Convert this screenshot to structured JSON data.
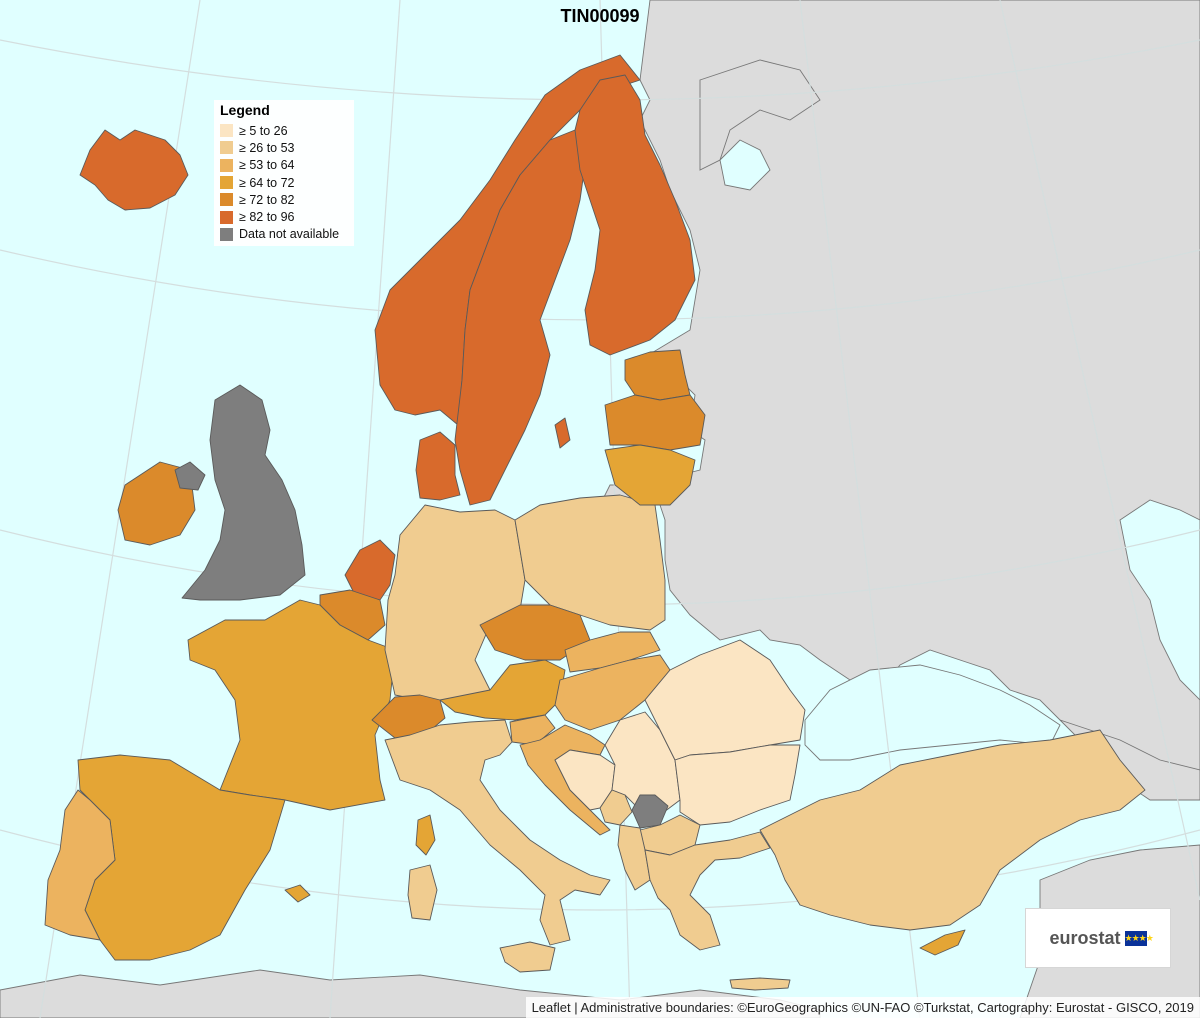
{
  "title": "TIN00099",
  "legend": {
    "title": "Legend",
    "items": [
      {
        "label": "≥ 5 to 26",
        "color": "#fbe5c3"
      },
      {
        "label": "≥ 26 to 53",
        "color": "#f0cc90"
      },
      {
        "label": "≥ 53 to 64",
        "color": "#ecb35f"
      },
      {
        "label": "≥ 64 to 72",
        "color": "#e4a535"
      },
      {
        "label": "≥ 72 to 82",
        "color": "#db8a2b"
      },
      {
        "label": "≥ 82 to 96",
        "color": "#d86a2c"
      },
      {
        "label": "Data not available",
        "color": "#7e7e7e"
      }
    ]
  },
  "colors": {
    "sea": "#e0ffff",
    "non_data_land": "#dcdcdc",
    "border": "#5a5a5a"
  },
  "countries": [
    {
      "name": "Iceland",
      "class": 5
    },
    {
      "name": "Norway",
      "class": 5
    },
    {
      "name": "Sweden",
      "class": 5
    },
    {
      "name": "Finland",
      "class": 5
    },
    {
      "name": "Denmark",
      "class": 5
    },
    {
      "name": "Netherlands",
      "class": 5
    },
    {
      "name": "Estonia",
      "class": 4
    },
    {
      "name": "Latvia",
      "class": 4
    },
    {
      "name": "Ireland",
      "class": 4
    },
    {
      "name": "Belgium",
      "class": 4
    },
    {
      "name": "Czechia",
      "class": 4
    },
    {
      "name": "Switzerland",
      "class": 4
    },
    {
      "name": "Lithuania",
      "class": 3
    },
    {
      "name": "France",
      "class": 3
    },
    {
      "name": "Spain",
      "class": 3
    },
    {
      "name": "Austria",
      "class": 3
    },
    {
      "name": "Cyprus",
      "class": 3
    },
    {
      "name": "Slovakia",
      "class": 2
    },
    {
      "name": "Hungary",
      "class": 2
    },
    {
      "name": "Slovenia",
      "class": 2
    },
    {
      "name": "Croatia",
      "class": 2
    },
    {
      "name": "Portugal",
      "class": 2
    },
    {
      "name": "Germany",
      "class": 1
    },
    {
      "name": "Poland",
      "class": 1
    },
    {
      "name": "Italy",
      "class": 1
    },
    {
      "name": "Greece",
      "class": 1
    },
    {
      "name": "Turkey",
      "class": 1
    },
    {
      "name": "Albania",
      "class": 1
    },
    {
      "name": "North Macedonia",
      "class": 1
    },
    {
      "name": "Montenegro",
      "class": 1
    },
    {
      "name": "Bulgaria",
      "class": 0
    },
    {
      "name": "Romania",
      "class": 0
    },
    {
      "name": "Serbia",
      "class": 0
    },
    {
      "name": "Bosnia and Herzegovina",
      "class": 0
    },
    {
      "name": "United Kingdom",
      "class": 6
    },
    {
      "name": "Kosovo",
      "class": 6
    }
  ],
  "logo": {
    "text": "eurostat",
    "flag_icon": "eu-flag-icon",
    "flag_stars": "★★★★"
  },
  "attribution": "Leaflet | Administrative boundaries: ©EuroGeographics ©UN-FAO ©Turkstat, Cartography: Eurostat - GISCO, 2019"
}
